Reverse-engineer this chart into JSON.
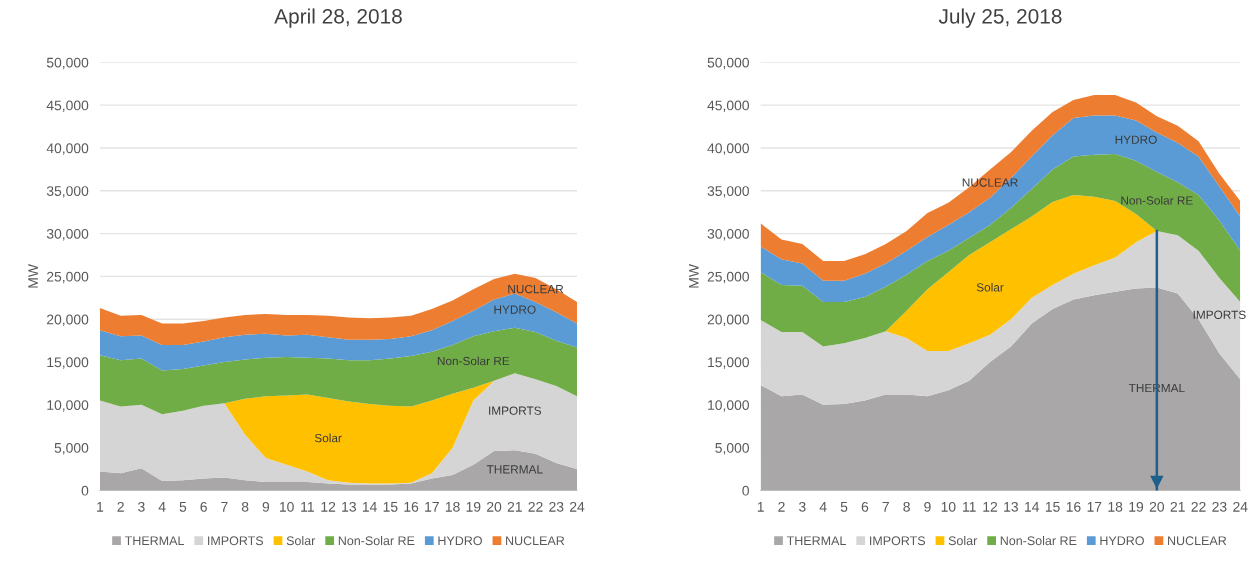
{
  "chart_data": [
    {
      "type": "area",
      "title": "April 28, 2018",
      "ylabel": "MW",
      "stacked": true,
      "grid": "y",
      "legend": "bottom",
      "categories": [
        "1",
        "2",
        "3",
        "4",
        "5",
        "6",
        "7",
        "8",
        "9",
        "10",
        "11",
        "12",
        "13",
        "14",
        "15",
        "16",
        "17",
        "18",
        "19",
        "20",
        "21",
        "22",
        "23",
        "24"
      ],
      "ylim": [
        0,
        50000
      ],
      "yticks": [
        {
          "value": 0,
          "label": "0"
        },
        {
          "value": 5000,
          "label": "5,000"
        },
        {
          "value": 10000,
          "label": "10,000"
        },
        {
          "value": 15000,
          "label": "15,000"
        },
        {
          "value": 20000,
          "label": "20,000"
        },
        {
          "value": 25000,
          "label": "25,000"
        },
        {
          "value": 30000,
          "label": "30,000"
        },
        {
          "value": 35000,
          "label": "35,000"
        },
        {
          "value": 40000,
          "label": "40,000"
        },
        {
          "value": 45000,
          "label": "45,000"
        },
        {
          "value": 50000,
          "label": "50,000"
        }
      ],
      "series": [
        {
          "name": "THERMAL",
          "color": "#a9a7a7",
          "values": [
            2200,
            2000,
            2600,
            1100,
            1200,
            1400,
            1500,
            1200,
            1000,
            1000,
            1000,
            800,
            700,
            700,
            700,
            800,
            1400,
            1800,
            3000,
            4600,
            4700,
            4300,
            3200,
            2500
          ]
        },
        {
          "name": "IMPORTS",
          "color": "#d6d5d5",
          "values": [
            8300,
            7800,
            7400,
            7800,
            8100,
            8500,
            8700,
            5300,
            2800,
            2000,
            1200,
            400,
            200,
            100,
            100,
            100,
            600,
            3200,
            7500,
            8200,
            9000,
            8700,
            9000,
            8500
          ]
        },
        {
          "name": "Solar",
          "color": "#ffc000",
          "values": [
            null,
            null,
            null,
            null,
            null,
            null,
            0,
            4200,
            7200,
            8100,
            9000,
            9600,
            9500,
            9300,
            9100,
            8900,
            8500,
            6300,
            1500,
            0,
            null,
            null,
            null,
            null
          ]
        },
        {
          "name": "Non-Solar RE",
          "color": "#70ad47",
          "values": [
            5300,
            5400,
            5400,
            5100,
            4900,
            4700,
            4800,
            4600,
            4500,
            4500,
            4300,
            4600,
            4800,
            5100,
            5500,
            5900,
            5700,
            5700,
            6000,
            5800,
            5300,
            5500,
            5300,
            5700
          ]
        },
        {
          "name": "HYDRO",
          "color": "#5b9bd5",
          "values": [
            2900,
            2800,
            2700,
            3000,
            2800,
            2800,
            2900,
            2900,
            2800,
            2500,
            2700,
            2500,
            2400,
            2400,
            2300,
            2300,
            2500,
            2800,
            3000,
            3700,
            4000,
            3500,
            3300,
            2800
          ]
        },
        {
          "name": "NUCLEAR",
          "color": "#ed7d31",
          "values": [
            2600,
            2400,
            2400,
            2500,
            2500,
            2400,
            2300,
            2300,
            2300,
            2400,
            2300,
            2500,
            2600,
            2500,
            2500,
            2400,
            2500,
            2400,
            2500,
            2400,
            2300,
            2800,
            2700,
            2500
          ]
        }
      ],
      "annotations": [
        "NUCLEAR",
        "HYDRO",
        "Non-Solar RE",
        "Solar",
        "IMPORTS",
        "THERMAL"
      ]
    },
    {
      "type": "area",
      "title": "July 25, 2018",
      "ylabel": "MW",
      "stacked": true,
      "grid": "y",
      "legend": "bottom",
      "categories": [
        "1",
        "2",
        "3",
        "4",
        "5",
        "6",
        "7",
        "8",
        "9",
        "10",
        "11",
        "12",
        "13",
        "14",
        "15",
        "16",
        "17",
        "18",
        "19",
        "20",
        "21",
        "22",
        "23",
        "24"
      ],
      "ylim": [
        0,
        50000
      ],
      "yticks": [
        {
          "value": 0,
          "label": "0"
        },
        {
          "value": 5000,
          "label": "5,000"
        },
        {
          "value": 10000,
          "label": "10,000"
        },
        {
          "value": 15000,
          "label": "15,000"
        },
        {
          "value": 20000,
          "label": "20,000"
        },
        {
          "value": 25000,
          "label": "25,000"
        },
        {
          "value": 30000,
          "label": "30,000"
        },
        {
          "value": 35000,
          "label": "35,000"
        },
        {
          "value": 40000,
          "label": "40,000"
        },
        {
          "value": 45000,
          "label": "45,000"
        },
        {
          "value": 50000,
          "label": "50,000"
        }
      ],
      "series": [
        {
          "name": "THERMAL",
          "color": "#a9a7a7",
          "values": [
            12300,
            11000,
            11200,
            10000,
            10100,
            10500,
            11200,
            11200,
            11000,
            11700,
            12800,
            15000,
            16800,
            19500,
            21200,
            22300,
            22800,
            23200,
            23600,
            23700,
            23000,
            20000,
            16000,
            13000
          ]
        },
        {
          "name": "IMPORTS",
          "color": "#d6d5d5",
          "values": [
            7600,
            7500,
            7300,
            6800,
            7100,
            7300,
            7400,
            6600,
            5300,
            4600,
            4400,
            3200,
            3200,
            3000,
            2800,
            3000,
            3500,
            4000,
            5400,
            6600,
            6800,
            8000,
            8800,
            9000
          ]
        },
        {
          "name": "Solar",
          "color": "#ffc000",
          "values": [
            null,
            null,
            null,
            null,
            null,
            null,
            0,
            3200,
            7200,
            9200,
            10300,
            10800,
            10500,
            9500,
            9700,
            9200,
            8000,
            6600,
            3300,
            0,
            null,
            null,
            null,
            null
          ]
        },
        {
          "name": "Non-Solar RE",
          "color": "#70ad47",
          "values": [
            5600,
            5500,
            5400,
            5200,
            4800,
            4800,
            5200,
            4200,
            3300,
            2500,
            2000,
            2000,
            2500,
            3200,
            3800,
            4500,
            4900,
            5500,
            6200,
            6900,
            6200,
            6500,
            6700,
            6000
          ]
        },
        {
          "name": "HYDRO",
          "color": "#5b9bd5",
          "values": [
            3000,
            3000,
            2600,
            2500,
            2500,
            2700,
            2700,
            2800,
            2800,
            3000,
            3000,
            3200,
            3500,
            3800,
            4000,
            4500,
            4600,
            4500,
            4700,
            4600,
            4600,
            4500,
            4000,
            4000
          ]
        },
        {
          "name": "NUCLEAR",
          "color": "#ed7d31",
          "values": [
            2700,
            2300,
            2300,
            2300,
            2300,
            2300,
            2300,
            2300,
            2800,
            2600,
            2900,
            3300,
            3000,
            3000,
            2700,
            2100,
            2400,
            2400,
            2100,
            1900,
            2000,
            1800,
            1500,
            1800
          ]
        }
      ],
      "ref_lines": [
        {
          "axis": "x",
          "value": "20",
          "color": "#1f5f8b"
        }
      ],
      "annotations": [
        "NUCLEAR",
        "HYDRO",
        "Non-Solar RE",
        "Solar",
        "IMPORTS",
        "THERMAL"
      ]
    }
  ]
}
